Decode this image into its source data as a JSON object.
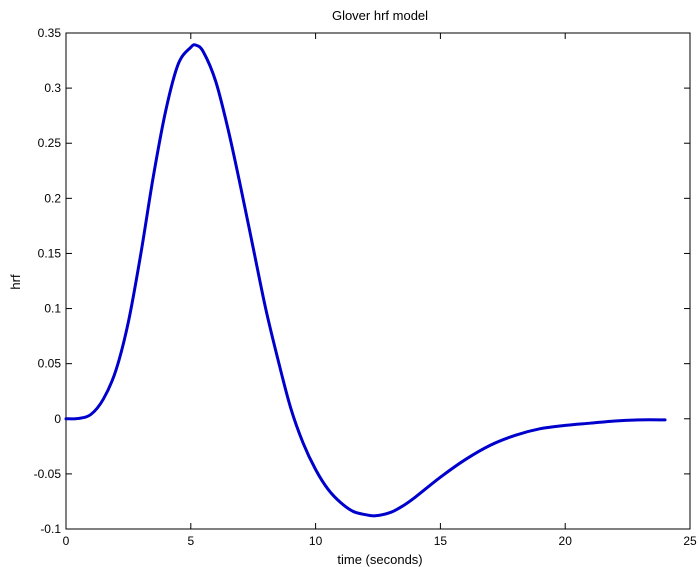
{
  "chart_data": {
    "type": "line",
    "title": "Glover hrf model",
    "xlabel": "time (seconds)",
    "ylabel": "hrf",
    "xlim": [
      0,
      25
    ],
    "ylim": [
      -0.1,
      0.35
    ],
    "xticks": [
      0,
      5,
      10,
      15,
      20,
      25
    ],
    "yticks": [
      -0.1,
      -0.05,
      0,
      0.05,
      0.1,
      0.15,
      0.2,
      0.25,
      0.3,
      0.35
    ],
    "xtick_labels": [
      "0",
      "5",
      "10",
      "15",
      "20",
      "25"
    ],
    "ytick_labels": [
      "-0.1",
      "-0.05",
      "0",
      "0.05",
      "0.1",
      "0.15",
      "0.2",
      "0.25",
      "0.3",
      "0.35"
    ],
    "grid": false,
    "series": [
      {
        "color": "#0000cc",
        "x": [
          0,
          0.5,
          1,
          1.5,
          2,
          2.5,
          3,
          3.5,
          4,
          4.5,
          5,
          5.2,
          5.5,
          6,
          6.5,
          7,
          7.5,
          8,
          8.5,
          9,
          9.5,
          10,
          10.5,
          11,
          11.5,
          12,
          12.4,
          13,
          13.5,
          14,
          15,
          16,
          17,
          18,
          19,
          20,
          21,
          22,
          23,
          24
        ],
        "y": [
          0,
          0.0003,
          0.004,
          0.018,
          0.044,
          0.088,
          0.15,
          0.22,
          0.28,
          0.322,
          0.337,
          0.339,
          0.333,
          0.306,
          0.262,
          0.21,
          0.155,
          0.1,
          0.053,
          0.01,
          -0.022,
          -0.046,
          -0.064,
          -0.076,
          -0.084,
          -0.087,
          -0.088,
          -0.085,
          -0.079,
          -0.071,
          -0.053,
          -0.037,
          -0.024,
          -0.015,
          -0.009,
          -0.006,
          -0.004,
          -0.002,
          -0.001,
          -0.001
        ]
      }
    ]
  }
}
